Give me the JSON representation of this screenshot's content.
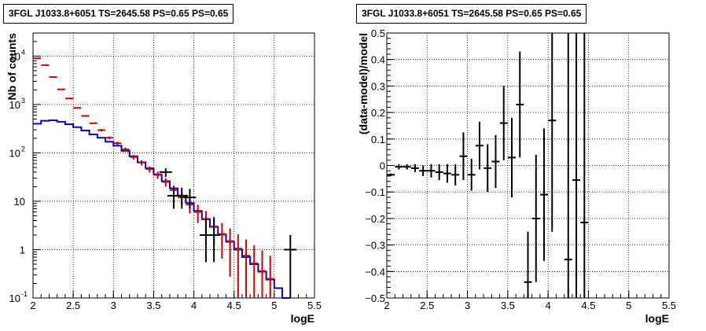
{
  "chart_data": [
    {
      "type": "line",
      "title": "3FGL J1033.8+6051 TS=2645.58 PS=0.65 PS=0.65",
      "xlabel": "logE",
      "ylabel": "Nb of counts",
      "xlim": [
        2,
        5.5
      ],
      "ylim": [
        0.1,
        30000
      ],
      "y_scale": "log",
      "grid": true,
      "x_ticks": [
        "2",
        "2.5",
        "3",
        "3.5",
        "4",
        "4.5",
        "5",
        "5.5"
      ],
      "y_ticks": [
        {
          "value": 0.1,
          "label": "10",
          "sup": "-1"
        },
        {
          "value": 1,
          "label": "1",
          "sup": ""
        },
        {
          "value": 10,
          "label": "10",
          "sup": ""
        },
        {
          "value": 100,
          "label": "10",
          "sup": "2"
        },
        {
          "value": 1000,
          "label": "10",
          "sup": "3"
        },
        {
          "value": 10000,
          "label": "10",
          "sup": "4"
        }
      ],
      "bin_edges": [
        2.0,
        2.1,
        2.2,
        2.3,
        2.4,
        2.5,
        2.6,
        2.7,
        2.8,
        2.9,
        3.0,
        3.1,
        3.2,
        3.3,
        3.4,
        3.5,
        3.6,
        3.7,
        3.8,
        3.9,
        4.0,
        4.1,
        4.2,
        4.3,
        4.4,
        4.5,
        4.6,
        4.7,
        4.8,
        4.9,
        5.0,
        5.1,
        5.2
      ],
      "series": [
        {
          "role": "total-model",
          "color": "#d00000",
          "x": [
            2.05,
            2.15,
            2.25,
            2.35,
            2.45,
            2.55,
            2.65,
            2.75,
            2.85,
            2.95,
            3.05,
            3.15,
            3.25,
            3.35,
            3.45,
            3.55,
            3.65,
            3.75,
            3.85,
            3.95,
            4.05,
            4.15,
            4.25,
            4.35,
            4.45,
            4.55,
            4.65,
            4.75,
            4.85,
            4.95
          ],
          "y": [
            9000,
            6500,
            3700,
            2050,
            1330,
            850,
            580,
            410,
            295,
            205,
            158,
            118,
            82,
            63,
            46,
            35,
            25,
            17,
            12,
            8.5,
            6.0,
            4.2,
            3.0,
            2.1,
            1.5,
            1.05,
            0.75,
            0.52,
            0.36,
            0.25
          ]
        },
        {
          "role": "source-model",
          "color": "#0000d0",
          "y": [
            400,
            460,
            470,
            440,
            390,
            340,
            290,
            240,
            205,
            170,
            140,
            110,
            85,
            64,
            48,
            36,
            26,
            18.5,
            13,
            9.2,
            6.3,
            4.3,
            2.95,
            2.05,
            1.45,
            1.0,
            0.7,
            0.5,
            0.35,
            0.24,
            0.16,
            0.1
          ]
        },
        {
          "role": "data",
          "color": "#000000",
          "x": [
            3.65,
            3.75,
            3.85,
            3.95,
            4.15,
            4.25,
            5.2
          ],
          "y": [
            40,
            13,
            13,
            12,
            2,
            2,
            1
          ],
          "y_lo": [
            32,
            7,
            7,
            7,
            0.55,
            0.55,
            0.1
          ],
          "y_hi": [
            48,
            19,
            19,
            18,
            4.5,
            4.5,
            2.0
          ]
        }
      ]
    },
    {
      "type": "scatter",
      "title": "3FGL J1033.8+6051 TS=2645.58 PS=0.65 PS=0.65",
      "xlabel": "logE",
      "ylabel": "(data-model)/model",
      "xlim": [
        2,
        5.5
      ],
      "ylim": [
        -0.5,
        0.5
      ],
      "grid": true,
      "x_ticks": [
        "2",
        "2.5",
        "3",
        "3.5",
        "4",
        "4.5",
        "5",
        "5.5"
      ],
      "y_ticks": [
        "-0.5",
        "-0.4",
        "-0.3",
        "-0.2",
        "-0.1",
        "0",
        "0.1",
        "0.2",
        "0.3",
        "0.4",
        "0.5"
      ],
      "series": [
        {
          "role": "residuals",
          "color": "#000000",
          "x": [
            2.05,
            2.15,
            2.25,
            2.35,
            2.45,
            2.55,
            2.65,
            2.75,
            2.85,
            2.95,
            3.05,
            3.15,
            3.25,
            3.35,
            3.45,
            3.55,
            3.65,
            3.75,
            3.85,
            3.95,
            4.05,
            4.25,
            4.35,
            4.45
          ],
          "y": [
            -0.035,
            -0.005,
            -0.005,
            -0.01,
            -0.02,
            -0.02,
            -0.025,
            -0.03,
            -0.035,
            0.035,
            -0.035,
            0.075,
            -0.01,
            0.015,
            0.16,
            0.03,
            0.23,
            -0.44,
            -0.2,
            -0.11,
            0.17,
            -0.355,
            -0.055,
            -0.215
          ],
          "err_lo": [
            0.005,
            0.01,
            0.01,
            0.015,
            0.02,
            0.025,
            0.03,
            0.035,
            0.04,
            0.09,
            0.06,
            0.09,
            0.09,
            0.1,
            0.14,
            0.15,
            0.2,
            0.06,
            0.24,
            0.25,
            0.42,
            0.15,
            0.45,
            0.29
          ],
          "err_hi": [
            0.005,
            0.01,
            0.01,
            0.015,
            0.02,
            0.025,
            0.03,
            0.035,
            0.04,
            0.09,
            0.06,
            0.09,
            0.09,
            0.1,
            0.14,
            0.15,
            0.2,
            0.19,
            0.24,
            0.25,
            0.33,
            0.86,
            0.56,
            0.72
          ]
        }
      ]
    }
  ]
}
